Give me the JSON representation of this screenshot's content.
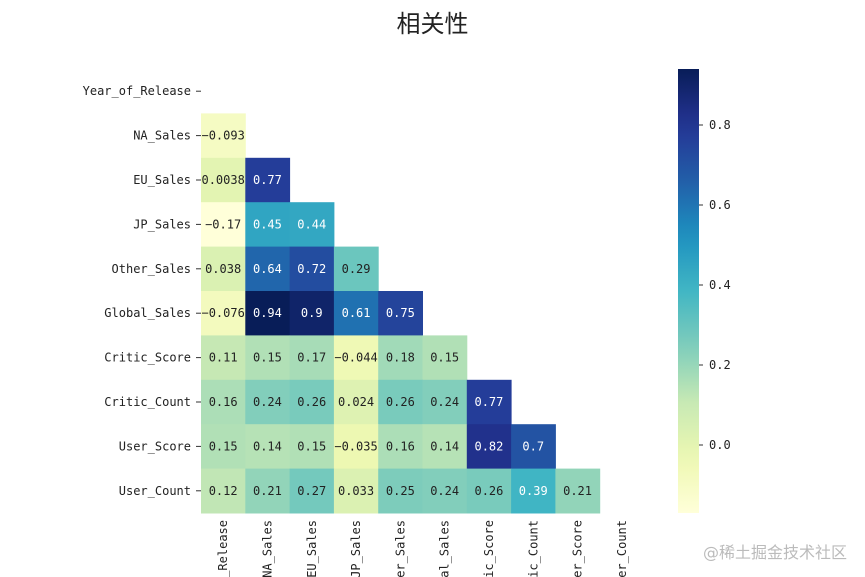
{
  "chart_data": {
    "type": "heatmap",
    "title": "相关性",
    "row_labels": [
      "Year_of_Release",
      "NA_Sales",
      "EU_Sales",
      "JP_Sales",
      "Other_Sales",
      "Global_Sales",
      "Critic_Score",
      "Critic_Count",
      "User_Score",
      "User_Count"
    ],
    "col_labels_visible": [
      "_Release",
      "NA_Sales",
      "EU_Sales",
      "JP_Sales",
      "er_Sales",
      "al_Sales",
      "ic_Score",
      "ic_Count",
      "er_Score",
      "er_Count"
    ],
    "mask": "upper triangle incl. diagonal",
    "values": [
      [],
      [
        -0.093
      ],
      [
        0.0038,
        0.77
      ],
      [
        -0.17,
        0.45,
        0.44
      ],
      [
        0.038,
        0.64,
        0.72,
        0.29
      ],
      [
        -0.076,
        0.94,
        0.9,
        0.61,
        0.75
      ],
      [
        0.11,
        0.15,
        0.17,
        -0.044,
        0.18,
        0.15
      ],
      [
        0.16,
        0.24,
        0.26,
        0.024,
        0.26,
        0.24,
        0.77
      ],
      [
        0.15,
        0.14,
        0.15,
        -0.035,
        0.16,
        0.14,
        0.82,
        0.7
      ],
      [
        0.12,
        0.21,
        0.27,
        0.033,
        0.25,
        0.24,
        0.26,
        0.39,
        0.21
      ]
    ],
    "colormap": "YlGnBu",
    "vmin": -0.17,
    "vmax": 0.94,
    "colorbar_ticks": [
      0.0,
      0.2,
      0.4,
      0.6,
      0.8
    ],
    "colorbar_tick_labels": [
      "0.0",
      "0.2",
      "0.4",
      "0.6",
      "0.8"
    ]
  },
  "watermark": "@稀土掘金技术社区"
}
